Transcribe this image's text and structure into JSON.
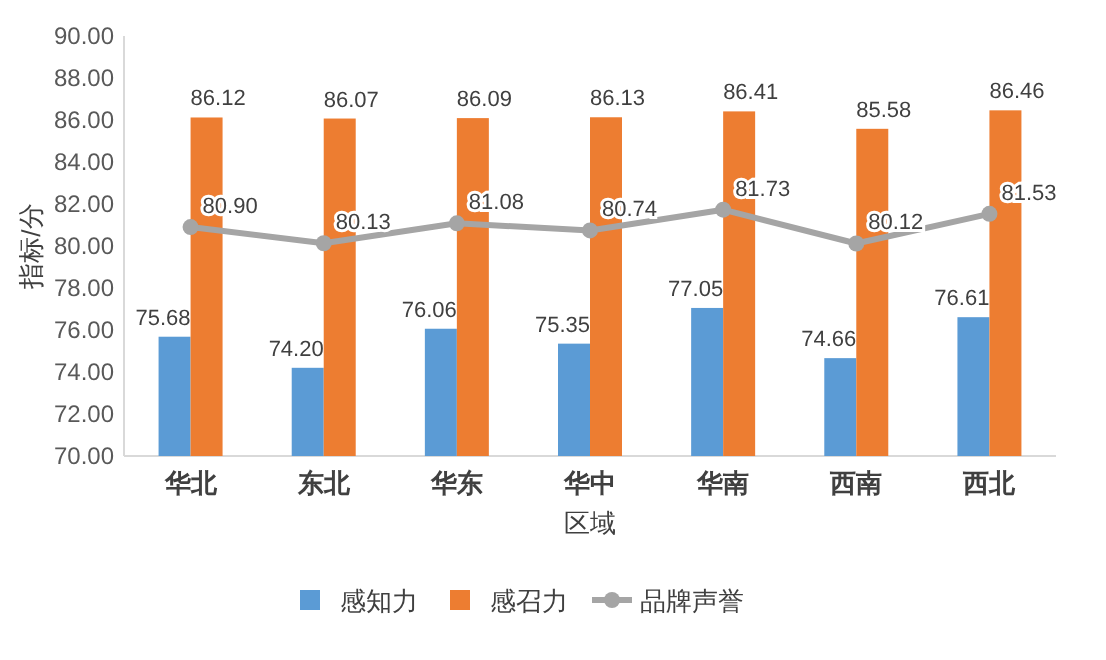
{
  "chart_data": {
    "type": "bar",
    "xlabel": "区域",
    "ylabel": "指标/分",
    "categories": [
      "华北",
      "东北",
      "华东",
      "华中",
      "华南",
      "西南",
      "西北"
    ],
    "series": [
      {
        "name": "感知力",
        "color": "#5b9bd5",
        "values": [
          75.68,
          74.2,
          76.06,
          75.35,
          77.05,
          74.66,
          76.61
        ],
        "value_labels": [
          "75.68",
          "74.20",
          "76.06",
          "75.35",
          "77.05",
          "74.66",
          "76.61"
        ]
      },
      {
        "name": "感召力",
        "color": "#ed7d31",
        "values": [
          86.12,
          86.07,
          86.09,
          86.13,
          86.41,
          85.58,
          86.46
        ],
        "value_labels": [
          "86.12",
          "86.07",
          "86.09",
          "86.13",
          "86.41",
          "85.58",
          "86.46"
        ]
      },
      {
        "name": "品牌声誉",
        "type": "line",
        "color": "#a5a5a5",
        "values": [
          80.9,
          80.13,
          81.08,
          80.74,
          81.73,
          80.12,
          81.53
        ],
        "value_labels": [
          "80.90",
          "80.13",
          "81.08",
          "80.74",
          "81.73",
          "80.12",
          "81.53"
        ]
      }
    ],
    "ylim": [
      70,
      90
    ],
    "yticks": [
      {
        "value": 70,
        "label": "70.00"
      },
      {
        "value": 72,
        "label": "72.00"
      },
      {
        "value": 74,
        "label": "74.00"
      },
      {
        "value": 76,
        "label": "76.00"
      },
      {
        "value": 78,
        "label": "78.00"
      },
      {
        "value": 80,
        "label": "80.00"
      },
      {
        "value": 82,
        "label": "82.00"
      },
      {
        "value": 84,
        "label": "84.00"
      },
      {
        "value": 86,
        "label": "86.00"
      },
      {
        "value": 88,
        "label": "88.00"
      },
      {
        "value": 90,
        "label": "90.00"
      }
    ],
    "marker": "circle",
    "legend": "bottom"
  }
}
